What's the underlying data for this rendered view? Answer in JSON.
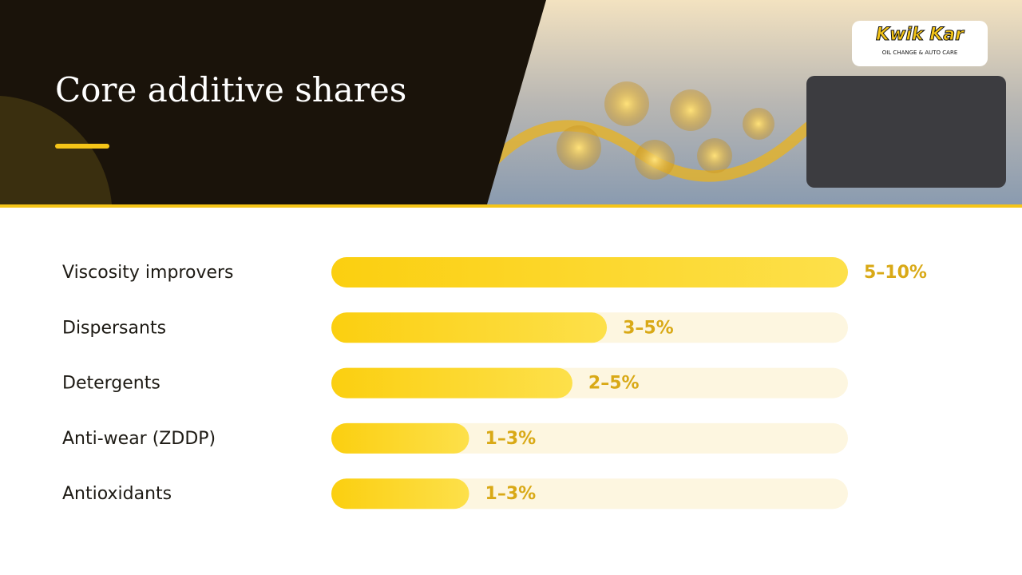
{
  "header": {
    "title": "Core additive shares",
    "logo": {
      "brand": "Kwik Kar",
      "tagline": "OIL CHANGE & AUTO CARE"
    }
  },
  "chart_data": {
    "type": "bar",
    "orientation": "horizontal",
    "categories": [
      "Viscosity improvers",
      "Dispersants",
      "Detergents",
      "Anti-wear (ZDDP)",
      "Antioxidants"
    ],
    "values": [
      7.5,
      4,
      3.5,
      2,
      2
    ],
    "value_labels": [
      "5–10%",
      "3–5%",
      "2–5%",
      "1–3%",
      "1–3%"
    ],
    "xlim": [
      0,
      7.5
    ],
    "color": "#fbd219"
  }
}
